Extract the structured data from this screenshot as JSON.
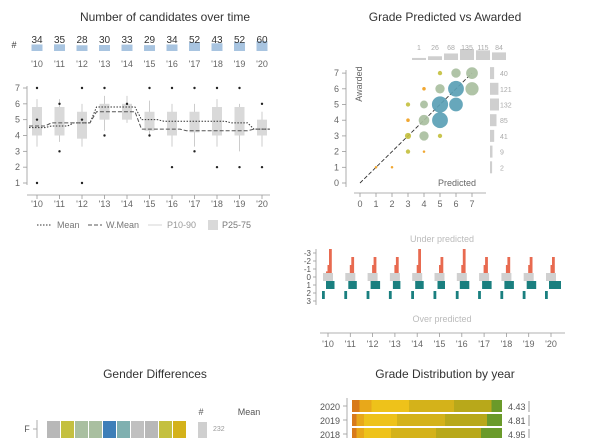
{
  "titles": {
    "candidates": "Number of candidates over time",
    "predicted_vs_awarded": "Grade Predicted vs Awarded",
    "gender": "Gender Differences",
    "distribution": "Grade Distribution by year"
  },
  "colors": {
    "bar_blue": "#a8c4e0",
    "box_grey": "#d9d9d9",
    "bubble_teal": "#5a9fb5",
    "bubble_sage": "#a9bfa0",
    "bubble_olive": "#c4c040",
    "bubble_orange": "#f0a020",
    "under_red": "#e86a50",
    "over_teal": "#1a7f7f",
    "grade_colors": [
      "#d87a1a",
      "#e8a81a",
      "#eec21a",
      "#d4b21a",
      "#b8a81a",
      "#6a9a2a"
    ]
  },
  "chart_data": [
    {
      "id": "candidates",
      "type": "bar+box",
      "title": "Number of candidates over time",
      "categories": [
        "'10",
        "'11",
        "'12",
        "'13",
        "'14",
        "'15",
        "'16",
        "'17",
        "'18",
        "'19",
        "'20"
      ],
      "counts": [
        34,
        35,
        28,
        30,
        33,
        29,
        34,
        52,
        43,
        52,
        60
      ],
      "count_axis_label": "#",
      "y_ticks": [
        1,
        2,
        3,
        4,
        5,
        6,
        7
      ],
      "ylim": [
        0.5,
        7.5
      ],
      "box": {
        "p10": [
          3.3,
          3.6,
          3.3,
          4.3,
          4.8,
          4.0,
          3.3,
          3.3,
          3.3,
          3.0,
          3.3
        ],
        "p25": [
          4.0,
          4.0,
          3.8,
          5.0,
          5.0,
          4.3,
          4.0,
          4.2,
          4.0,
          4.0,
          4.0
        ],
        "p75": [
          5.8,
          5.8,
          5.5,
          6.0,
          6.0,
          5.5,
          5.5,
          5.5,
          5.8,
          5.8,
          5.0
        ],
        "p90": [
          6.3,
          6.3,
          6.0,
          6.5,
          6.5,
          6.2,
          6.0,
          6.0,
          6.3,
          6.0,
          5.5
        ]
      },
      "mean": [
        4.5,
        4.6,
        4.8,
        5.8,
        5.8,
        5.0,
        4.9,
        4.9,
        4.9,
        4.8,
        4.4
      ],
      "wmean": [
        4.6,
        4.8,
        4.8,
        5.5,
        5.5,
        4.4,
        4.4,
        4.3,
        4.3,
        4.3,
        4.4
      ],
      "outliers": [
        [
          0,
          1
        ],
        [
          0,
          7
        ],
        [
          0,
          5
        ],
        [
          1,
          3
        ],
        [
          1,
          6
        ],
        [
          2,
          1
        ],
        [
          2,
          7
        ],
        [
          2,
          5
        ],
        [
          3,
          4
        ],
        [
          3,
          7
        ],
        [
          4,
          6
        ],
        [
          5,
          4
        ],
        [
          5,
          7
        ],
        [
          6,
          2
        ],
        [
          6,
          7
        ],
        [
          7,
          3
        ],
        [
          7,
          7
        ],
        [
          8,
          2
        ],
        [
          8,
          7
        ],
        [
          9,
          2
        ],
        [
          9,
          7
        ],
        [
          10,
          2
        ],
        [
          10,
          6
        ]
      ],
      "legend": [
        "Mean",
        "W.Mean",
        "P10-90",
        "P25-75"
      ]
    },
    {
      "id": "predicted_vs_awarded",
      "type": "scatter",
      "title": "Grade Predicted vs Awarded",
      "xlabel": "Predicted",
      "ylabel": "Awarded",
      "x_ticks": [
        0,
        1,
        2,
        3,
        4,
        5,
        6,
        7
      ],
      "y_ticks": [
        0,
        1,
        2,
        3,
        4,
        5,
        6,
        7
      ],
      "top_counts": [
        {
          "x": 1,
          "n": 1
        },
        {
          "x": 2,
          "n": 26
        },
        {
          "x": 3,
          "n": 68
        },
        {
          "x": 4,
          "n": 135
        },
        {
          "x": 5,
          "n": 115
        },
        {
          "x": 6,
          "n": 84
        }
      ],
      "side_counts": [
        {
          "y": 7,
          "n": 40
        },
        {
          "y": 6,
          "n": 121
        },
        {
          "y": 5,
          "n": 132
        },
        {
          "y": 4,
          "n": 85
        },
        {
          "y": 3,
          "n": 41
        },
        {
          "y": 2,
          "n": 9
        },
        {
          "y": 1,
          "n": 2
        }
      ],
      "points": [
        {
          "x": 1,
          "y": 1,
          "n": 1,
          "c": "orange"
        },
        {
          "x": 2,
          "y": 1,
          "n": 1,
          "c": "orange"
        },
        {
          "x": 3,
          "y": 2,
          "n": 3,
          "c": "olive"
        },
        {
          "x": 3,
          "y": 3,
          "n": 6,
          "c": "olive"
        },
        {
          "x": 3,
          "y": 4,
          "n": 2,
          "c": "orange"
        },
        {
          "x": 3,
          "y": 5,
          "n": 3,
          "c": "olive"
        },
        {
          "x": 4,
          "y": 2,
          "n": 1,
          "c": "orange"
        },
        {
          "x": 4,
          "y": 3,
          "n": 14,
          "c": "sage"
        },
        {
          "x": 4,
          "y": 4,
          "n": 18,
          "c": "sage"
        },
        {
          "x": 4,
          "y": 5,
          "n": 10,
          "c": "sage"
        },
        {
          "x": 4,
          "y": 6,
          "n": 2,
          "c": "orange"
        },
        {
          "x": 5,
          "y": 3,
          "n": 3,
          "c": "olive"
        },
        {
          "x": 5,
          "y": 4,
          "n": 40,
          "c": "teal"
        },
        {
          "x": 5,
          "y": 5,
          "n": 42,
          "c": "teal"
        },
        {
          "x": 5,
          "y": 6,
          "n": 14,
          "c": "sage"
        },
        {
          "x": 5,
          "y": 7,
          "n": 3,
          "c": "olive"
        },
        {
          "x": 6,
          "y": 5,
          "n": 30,
          "c": "teal"
        },
        {
          "x": 6,
          "y": 6,
          "n": 40,
          "c": "teal"
        },
        {
          "x": 6,
          "y": 7,
          "n": 14,
          "c": "sage"
        },
        {
          "x": 7,
          "y": 6,
          "n": 28,
          "c": "sage"
        },
        {
          "x": 7,
          "y": 7,
          "n": 22,
          "c": "sage"
        }
      ]
    },
    {
      "id": "under_over",
      "type": "bar",
      "labels": {
        "under": "Under predicted",
        "over": "Over predicted"
      },
      "categories": [
        "'10",
        "'11",
        "'12",
        "'13",
        "'14",
        "'15",
        "'16",
        "'17",
        "'18",
        "'19",
        "'20"
      ],
      "y_ticks": [
        -3,
        -2,
        -1,
        0,
        1,
        2,
        3
      ],
      "sub_bins": 7,
      "under": [
        [
          0,
          0,
          0.2,
          1.0,
          3.0,
          0,
          0
        ],
        [
          0,
          0,
          0,
          1.0,
          2.0,
          0,
          0
        ],
        [
          0,
          0,
          0,
          1.0,
          2.0,
          0,
          0
        ],
        [
          0,
          0,
          0,
          1.0,
          2.0,
          0,
          0
        ],
        [
          0,
          0,
          0,
          1.0,
          3.0,
          0,
          0
        ],
        [
          0,
          0,
          0,
          1.0,
          2.0,
          0,
          0
        ],
        [
          0,
          0,
          0,
          1.0,
          3.0,
          0,
          0
        ],
        [
          0,
          0,
          0,
          1.0,
          2.0,
          0,
          0
        ],
        [
          0,
          0,
          0,
          1.0,
          2.0,
          0,
          0
        ],
        [
          0,
          0,
          0,
          1.0,
          2.0,
          0,
          0
        ],
        [
          0,
          0,
          0,
          1.0,
          2.0,
          0,
          0
        ]
      ],
      "over_lvl1": [
        [
          0,
          0,
          0.3,
          0.7,
          0.5,
          0,
          0
        ],
        [
          0,
          0,
          0.3,
          0.7,
          0.5,
          0,
          0
        ],
        [
          0,
          0,
          0.3,
          0.8,
          0.6,
          0,
          0
        ],
        [
          0,
          0,
          0.3,
          0.6,
          0.4,
          0,
          0
        ],
        [
          0,
          0,
          0.3,
          0.7,
          0.5,
          0,
          0
        ],
        [
          0,
          0,
          0.3,
          0.6,
          0.4,
          0,
          0
        ],
        [
          0,
          0,
          0.3,
          0.8,
          0.6,
          0,
          0
        ],
        [
          0,
          0,
          0.3,
          0.8,
          0.6,
          0,
          0
        ],
        [
          0,
          0,
          0.3,
          0.8,
          0.6,
          0,
          0
        ],
        [
          0,
          0,
          0.3,
          0.8,
          0.6,
          0,
          0
        ],
        [
          0,
          0,
          0.3,
          1.0,
          0.9,
          0,
          0
        ]
      ],
      "over_lvl2": [
        [
          0,
          0,
          0.5,
          0,
          0,
          0,
          0
        ],
        [
          0,
          0,
          0.5,
          0,
          0,
          0,
          0
        ],
        [
          0,
          0,
          0.5,
          0,
          0,
          0,
          0
        ],
        [
          0,
          0,
          0.5,
          0,
          0,
          0,
          0
        ],
        [
          0,
          0,
          0.5,
          0,
          0,
          0,
          0
        ],
        [
          0,
          0,
          0.5,
          0,
          0,
          0,
          0
        ],
        [
          0,
          0,
          0.5,
          0,
          0,
          0,
          0
        ],
        [
          0,
          0,
          0.5,
          0,
          0,
          0,
          0
        ],
        [
          0,
          0,
          0.5,
          0,
          0,
          0,
          0
        ],
        [
          0,
          0,
          0.5,
          0,
          0,
          0,
          0
        ],
        [
          0,
          0,
          0.5,
          0,
          0,
          0,
          0
        ]
      ]
    },
    {
      "id": "gender",
      "type": "stacked-bar",
      "title": "Gender Differences",
      "rows": [
        {
          "label": "F",
          "n": 232
        }
      ],
      "segment_colors": [
        "#b8b8b8",
        "#c4c040",
        "#a9bfa0",
        "#a9bfa0",
        "#3d7fb8",
        "#7fb0b0",
        "#c0c0c0",
        "#b8b8b8",
        "#c4c040",
        "#d4b21a"
      ],
      "headers": {
        "count": "#",
        "mean": "Mean"
      }
    },
    {
      "id": "distribution",
      "type": "stacked-bar",
      "title": "Grade Distribution by year",
      "rows": [
        {
          "year": "2020",
          "mean": "4.43",
          "shares": [
            0.05,
            0.08,
            0.25,
            0.3,
            0.25,
            0.07
          ]
        },
        {
          "year": "2019",
          "mean": "4.81",
          "shares": [
            0.03,
            0.05,
            0.22,
            0.32,
            0.28,
            0.1
          ]
        },
        {
          "year": "2018",
          "mean": "4.95",
          "shares": [
            0.03,
            0.05,
            0.18,
            0.3,
            0.3,
            0.14
          ]
        }
      ]
    }
  ]
}
